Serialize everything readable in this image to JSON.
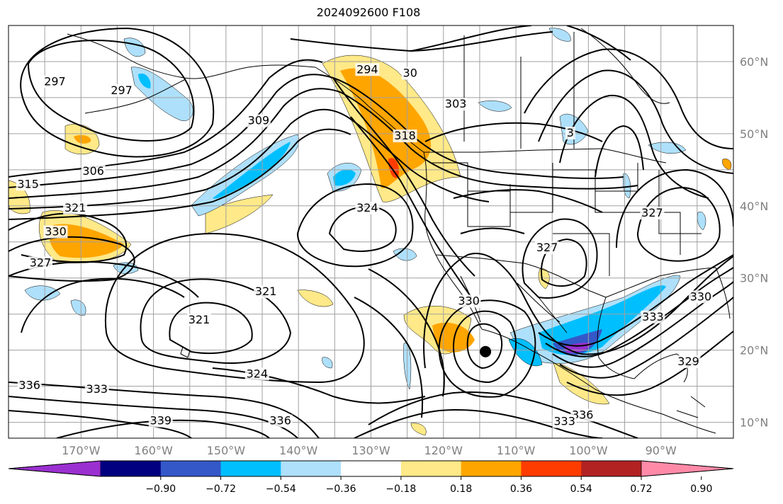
{
  "title": "2024092600 F108",
  "map": {
    "lon_labels": [
      "170°W",
      "160°W",
      "150°W",
      "140°W",
      "130°W",
      "120°W",
      "110°W",
      "100°W",
      "90°W"
    ],
    "lat_labels": [
      "60°N",
      "50°N",
      "40°N",
      "30°N",
      "20°N",
      "10°N"
    ],
    "contour_labels": [
      {
        "text": "294",
        "lon": -130.5,
        "lat": 58.5
      },
      {
        "text": "297",
        "lon": -173.6,
        "lat": 56.8
      },
      {
        "text": "297",
        "lon": -164.4,
        "lat": 55.6
      },
      {
        "text": "309",
        "lon": -145.5,
        "lat": 51.4
      },
      {
        "text": "306",
        "lon": -168.3,
        "lat": 44.4
      },
      {
        "text": "315",
        "lon": -177.3,
        "lat": 42.6
      },
      {
        "text": "321",
        "lon": -170.8,
        "lat": 39.3
      },
      {
        "text": "330",
        "lon": -173.5,
        "lat": 36.0
      },
      {
        "text": "327",
        "lon": -175.6,
        "lat": 31.7
      },
      {
        "text": "321",
        "lon": -144.5,
        "lat": 27.7
      },
      {
        "text": "321",
        "lon": -153.7,
        "lat": 23.8
      },
      {
        "text": "324",
        "lon": -130.5,
        "lat": 39.3
      },
      {
        "text": "318",
        "lon": -125.3,
        "lat": 49.3
      },
      {
        "text": "330",
        "lon": -116.5,
        "lat": 26.4
      },
      {
        "text": "327",
        "lon": -105.7,
        "lat": 33.8
      },
      {
        "text": "327",
        "lon": -91.2,
        "lat": 38.6
      },
      {
        "text": "336",
        "lon": -177.1,
        "lat": 14.7
      },
      {
        "text": "333",
        "lon": -167.8,
        "lat": 14.2
      },
      {
        "text": "324",
        "lon": -145.7,
        "lat": 16.3
      },
      {
        "text": "339",
        "lon": -159.0,
        "lat": 9.8
      },
      {
        "text": "336",
        "lon": -142.5,
        "lat": 9.8
      },
      {
        "text": "336",
        "lon": -100.8,
        "lat": 10.6
      },
      {
        "text": "333",
        "lon": -103.3,
        "lat": 9.7
      },
      {
        "text": "333",
        "lon": -91.1,
        "lat": 24.2
      },
      {
        "text": "330",
        "lon": -84.5,
        "lat": 27.0
      },
      {
        "text": "329",
        "lon": -86.2,
        "lat": 18.0
      },
      {
        "text": "3",
        "lon": -102.5,
        "lat": 49.7
      },
      {
        "text": "30",
        "lon": -124.6,
        "lat": 58.0
      },
      {
        "text": "303",
        "lon": -118.3,
        "lat": 53.7
      }
    ],
    "storm_marker": {
      "lon": -114.2,
      "lat": 19.8
    }
  },
  "colorbar": {
    "ticks": [
      "−0.90",
      "−0.72",
      "−0.54",
      "−0.36",
      "−0.18",
      "0.18",
      "0.36",
      "0.54",
      "0.72",
      "0.90"
    ],
    "colors": [
      "#9b30d0",
      "#000080",
      "#3558c8",
      "#00bfff",
      "#aee0fb",
      "#ffffff",
      "#ffe988",
      "#ffa500",
      "#ff3c00",
      "#b22222",
      "#ff8aa8"
    ]
  }
}
